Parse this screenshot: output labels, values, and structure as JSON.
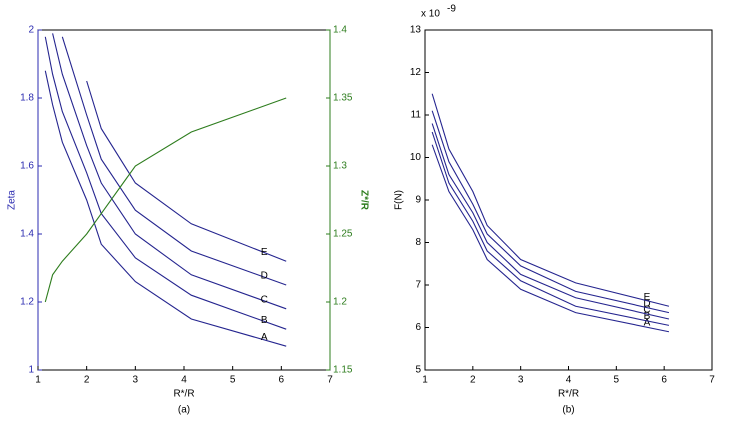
{
  "chart_data": [
    {
      "type": "line",
      "xlabel": "R*/R",
      "ylabel": "Zeta",
      "y2label": "Z*/R",
      "caption": "(a)",
      "xlim": [
        1,
        7
      ],
      "xticks": [
        1,
        2,
        3,
        4,
        5,
        6,
        7
      ],
      "ylim": [
        1,
        2
      ],
      "yticks": [
        1,
        1.2,
        1.4,
        1.6,
        1.8,
        2
      ],
      "y2lim": [
        1.15,
        1.4
      ],
      "y2ticks": [
        1.15,
        1.2,
        1.25,
        1.3,
        1.35,
        1.4
      ],
      "axis_color": "#2b2bb0",
      "axis2_color": "#2e7d1e",
      "x": [
        1.15,
        1.3,
        1.5,
        2,
        2.3,
        3,
        4.15,
        6.1
      ],
      "series": [
        {
          "name": "A",
          "color": "#25258f",
          "values": [
            1.88,
            1.78,
            1.67,
            1.5,
            1.37,
            1.26,
            1.15,
            1.07
          ]
        },
        {
          "name": "B",
          "color": "#25258f",
          "values": [
            1.98,
            1.87,
            1.76,
            1.58,
            1.46,
            1.33,
            1.22,
            1.12
          ]
        },
        {
          "name": "C",
          "color": "#25258f",
          "values": [
            null,
            1.99,
            1.87,
            1.66,
            1.55,
            1.4,
            1.28,
            1.18
          ]
        },
        {
          "name": "D",
          "color": "#25258f",
          "values": [
            null,
            null,
            1.98,
            1.75,
            1.62,
            1.47,
            1.35,
            1.25
          ]
        },
        {
          "name": "E",
          "color": "#25258f",
          "values": [
            null,
            null,
            null,
            1.85,
            1.71,
            1.55,
            1.43,
            1.32
          ]
        },
        {
          "color": "#2e7d1e",
          "axis": "y2",
          "values": [
            1.2,
            1.22,
            1.23,
            1.25,
            1.265,
            1.3,
            1.325,
            1.35
          ]
        }
      ]
    },
    {
      "type": "line",
      "xlabel": "R*/R",
      "ylabel": "F(N)",
      "caption": "(b)",
      "y_multiplier": {
        "base": "x 10",
        "exponent": "-9"
      },
      "xlim": [
        1,
        7
      ],
      "xticks": [
        1,
        2,
        3,
        4,
        5,
        6,
        7
      ],
      "ylim": [
        5,
        13
      ],
      "yticks": [
        5,
        6,
        7,
        8,
        9,
        10,
        11,
        12,
        13
      ],
      "axis_color": "#000000",
      "x": [
        1.15,
        1.5,
        2,
        2.3,
        3,
        4.15,
        6.1
      ],
      "series": [
        {
          "name": "A",
          "color": "#25258f",
          "values": [
            10.3,
            9.2,
            8.3,
            7.6,
            6.9,
            6.35,
            5.9
          ]
        },
        {
          "name": "B",
          "color": "#25258f",
          "values": [
            10.6,
            9.4,
            8.5,
            7.8,
            7.1,
            6.5,
            6.05
          ]
        },
        {
          "name": "C",
          "color": "#25258f",
          "values": [
            10.8,
            9.6,
            8.7,
            8.0,
            7.25,
            6.7,
            6.2
          ]
        },
        {
          "name": "D",
          "color": "#25258f",
          "values": [
            11.1,
            9.9,
            8.9,
            8.2,
            7.45,
            6.85,
            6.35
          ]
        },
        {
          "name": "E",
          "color": "#25258f",
          "values": [
            11.5,
            10.2,
            9.2,
            8.4,
            7.6,
            7.05,
            6.5
          ]
        }
      ]
    }
  ]
}
